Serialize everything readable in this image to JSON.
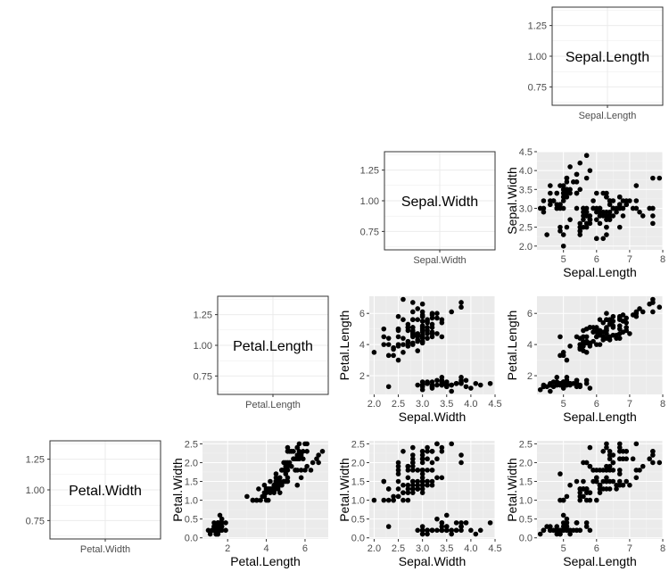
{
  "colors": {
    "panel_bg": "#ebebeb",
    "grid_major": "#ffffff",
    "grid_minor": "#f4f4f4",
    "point": "#000000",
    "diag_border": "#333333",
    "diag_grid": "#ebebeb",
    "tick_text": "#4d4d4d"
  },
  "chart_data": [
    {
      "id": "diag-sepal-length",
      "type": "label-panel",
      "variable": "Sepal.Length",
      "label": "Sepal.Length",
      "xlabel": "Sepal.Length",
      "ylim": [
        0.6,
        1.4
      ],
      "y_ticks": [
        0.75,
        1.0,
        1.25
      ],
      "y_tick_labels": [
        "0.75",
        "1.00",
        "1.25"
      ]
    },
    {
      "id": "diag-sepal-width",
      "type": "label-panel",
      "variable": "Sepal.Width",
      "label": "Sepal.Width",
      "xlabel": "Sepal.Width",
      "ylim": [
        0.6,
        1.4
      ],
      "y_ticks": [
        0.75,
        1.0,
        1.25
      ],
      "y_tick_labels": [
        "0.75",
        "1.00",
        "1.25"
      ]
    },
    {
      "id": "diag-petal-length",
      "type": "label-panel",
      "variable": "Petal.Length",
      "label": "Petal.Length",
      "xlabel": "Petal.Length",
      "ylim": [
        0.6,
        1.4
      ],
      "y_ticks": [
        0.75,
        1.0,
        1.25
      ],
      "y_tick_labels": [
        "0.75",
        "1.00",
        "1.25"
      ]
    },
    {
      "id": "diag-petal-width",
      "type": "label-panel",
      "variable": "Petal.Width",
      "label": "Petal.Width",
      "xlabel": "Petal.Width",
      "ylim": [
        0.6,
        1.4
      ],
      "y_ticks": [
        0.75,
        1.0,
        1.25
      ],
      "y_tick_labels": [
        "0.75",
        "1.00",
        "1.25"
      ]
    },
    {
      "id": "scatter-sepal-length-vs-sepal-width",
      "type": "scatter",
      "xvar": "Sepal.Length",
      "yvar": "Sepal.Width",
      "xlabel": "Sepal.Length",
      "ylabel": "Sepal.Width",
      "xlim": [
        4.2,
        8.0
      ],
      "ylim": [
        1.9,
        4.5
      ],
      "x_ticks": [
        5,
        6,
        7,
        8
      ],
      "y_ticks": [
        2.0,
        2.5,
        3.0,
        3.5,
        4.0,
        4.5
      ],
      "x_tick_labels": [
        "5",
        "6",
        "7",
        "8"
      ],
      "y_tick_labels": [
        "2.0",
        "2.5",
        "3.0",
        "3.5",
        "4.0",
        "4.5"
      ]
    },
    {
      "id": "scatter-sepal-width-vs-petal-length",
      "type": "scatter",
      "xvar": "Sepal.Width",
      "yvar": "Petal.Length",
      "xlabel": "Sepal.Width",
      "ylabel": "Petal.Length",
      "xlim": [
        1.9,
        4.5
      ],
      "ylim": [
        0.8,
        7.1
      ],
      "x_ticks": [
        2.0,
        2.5,
        3.0,
        3.5,
        4.0,
        4.5
      ],
      "y_ticks": [
        2,
        4,
        6
      ],
      "x_tick_labels": [
        "2.0",
        "2.5",
        "3.0",
        "3.5",
        "4.0",
        "4.5"
      ],
      "y_tick_labels": [
        "2",
        "4",
        "6"
      ]
    },
    {
      "id": "scatter-sepal-length-vs-petal-length",
      "type": "scatter",
      "xvar": "Sepal.Length",
      "yvar": "Petal.Length",
      "xlabel": "Sepal.Length",
      "ylabel": "Petal.Length",
      "xlim": [
        4.2,
        8.0
      ],
      "ylim": [
        0.8,
        7.1
      ],
      "x_ticks": [
        5,
        6,
        7,
        8
      ],
      "y_ticks": [
        2,
        4,
        6
      ],
      "x_tick_labels": [
        "5",
        "6",
        "7",
        "8"
      ],
      "y_tick_labels": [
        "2",
        "4",
        "6"
      ]
    },
    {
      "id": "scatter-petal-length-vs-petal-width",
      "type": "scatter",
      "xvar": "Petal.Length",
      "yvar": "Petal.Width",
      "xlabel": "Petal.Length",
      "ylabel": "Petal.Width",
      "xlim": [
        0.7,
        7.2
      ],
      "ylim": [
        -0.03,
        2.58
      ],
      "x_ticks": [
        2,
        4,
        6
      ],
      "y_ticks": [
        0.0,
        0.5,
        1.0,
        1.5,
        2.0,
        2.5
      ],
      "x_tick_labels": [
        "2",
        "4",
        "6"
      ],
      "y_tick_labels": [
        "0.0",
        "0.5",
        "1.0",
        "1.5",
        "2.0",
        "2.5"
      ]
    },
    {
      "id": "scatter-sepal-width-vs-petal-width",
      "type": "scatter",
      "xvar": "Sepal.Width",
      "yvar": "Petal.Width",
      "xlabel": "Sepal.Width",
      "ylabel": "Petal.Width",
      "xlim": [
        1.9,
        4.5
      ],
      "ylim": [
        -0.03,
        2.58
      ],
      "x_ticks": [
        2.0,
        2.5,
        3.0,
        3.5,
        4.0,
        4.5
      ],
      "y_ticks": [
        0.0,
        0.5,
        1.0,
        1.5,
        2.0,
        2.5
      ],
      "x_tick_labels": [
        "2.0",
        "2.5",
        "3.0",
        "3.5",
        "4.0",
        "4.5"
      ],
      "y_tick_labels": [
        "0.0",
        "0.5",
        "1.0",
        "1.5",
        "2.0",
        "2.5"
      ]
    },
    {
      "id": "scatter-sepal-length-vs-petal-width",
      "type": "scatter",
      "xvar": "Sepal.Length",
      "yvar": "Petal.Width",
      "xlabel": "Sepal.Length",
      "ylabel": "Petal.Width",
      "xlim": [
        4.2,
        8.0
      ],
      "ylim": [
        -0.03,
        2.58
      ],
      "x_ticks": [
        5,
        6,
        7,
        8
      ],
      "y_ticks": [
        0.0,
        0.5,
        1.0,
        1.5,
        2.0,
        2.5
      ],
      "x_tick_labels": [
        "5",
        "6",
        "7",
        "8"
      ],
      "y_tick_labels": [
        "0.0",
        "0.5",
        "1.0",
        "1.5",
        "2.0",
        "2.5"
      ]
    }
  ],
  "iris": {
    "columns": [
      "Sepal.Length",
      "Sepal.Width",
      "Petal.Length",
      "Petal.Width"
    ],
    "rows": [
      [
        5.1,
        3.5,
        1.4,
        0.2
      ],
      [
        4.9,
        3.0,
        1.4,
        0.2
      ],
      [
        4.7,
        3.2,
        1.3,
        0.2
      ],
      [
        4.6,
        3.1,
        1.5,
        0.2
      ],
      [
        5.0,
        3.6,
        1.4,
        0.2
      ],
      [
        5.4,
        3.9,
        1.7,
        0.4
      ],
      [
        4.6,
        3.4,
        1.4,
        0.3
      ],
      [
        5.0,
        3.4,
        1.5,
        0.2
      ],
      [
        4.4,
        2.9,
        1.4,
        0.2
      ],
      [
        4.9,
        3.1,
        1.5,
        0.1
      ],
      [
        5.4,
        3.7,
        1.5,
        0.2
      ],
      [
        4.8,
        3.4,
        1.6,
        0.2
      ],
      [
        4.8,
        3.0,
        1.4,
        0.1
      ],
      [
        4.3,
        3.0,
        1.1,
        0.1
      ],
      [
        5.8,
        4.0,
        1.2,
        0.2
      ],
      [
        5.7,
        4.4,
        1.5,
        0.4
      ],
      [
        5.4,
        3.9,
        1.3,
        0.4
      ],
      [
        5.1,
        3.5,
        1.4,
        0.3
      ],
      [
        5.7,
        3.8,
        1.7,
        0.3
      ],
      [
        5.1,
        3.8,
        1.5,
        0.3
      ],
      [
        5.4,
        3.4,
        1.7,
        0.2
      ],
      [
        5.1,
        3.7,
        1.5,
        0.4
      ],
      [
        4.6,
        3.6,
        1.0,
        0.2
      ],
      [
        5.1,
        3.3,
        1.7,
        0.5
      ],
      [
        4.8,
        3.4,
        1.9,
        0.2
      ],
      [
        5.0,
        3.0,
        1.6,
        0.2
      ],
      [
        5.0,
        3.4,
        1.6,
        0.4
      ],
      [
        5.2,
        3.5,
        1.5,
        0.2
      ],
      [
        5.2,
        3.4,
        1.4,
        0.2
      ],
      [
        4.7,
        3.2,
        1.6,
        0.2
      ],
      [
        4.8,
        3.1,
        1.6,
        0.2
      ],
      [
        5.4,
        3.4,
        1.5,
        0.4
      ],
      [
        5.2,
        4.1,
        1.5,
        0.1
      ],
      [
        5.5,
        4.2,
        1.4,
        0.2
      ],
      [
        4.9,
        3.1,
        1.5,
        0.2
      ],
      [
        5.0,
        3.2,
        1.2,
        0.2
      ],
      [
        5.5,
        3.5,
        1.3,
        0.2
      ],
      [
        4.9,
        3.6,
        1.4,
        0.1
      ],
      [
        4.4,
        3.0,
        1.3,
        0.2
      ],
      [
        5.1,
        3.4,
        1.5,
        0.2
      ],
      [
        5.0,
        3.5,
        1.3,
        0.3
      ],
      [
        4.5,
        2.3,
        1.3,
        0.3
      ],
      [
        4.4,
        3.2,
        1.3,
        0.2
      ],
      [
        5.0,
        3.5,
        1.6,
        0.6
      ],
      [
        5.1,
        3.8,
        1.9,
        0.4
      ],
      [
        4.8,
        3.0,
        1.4,
        0.3
      ],
      [
        5.1,
        3.8,
        1.6,
        0.2
      ],
      [
        4.6,
        3.2,
        1.4,
        0.2
      ],
      [
        5.3,
        3.7,
        1.5,
        0.2
      ],
      [
        5.0,
        3.3,
        1.4,
        0.2
      ],
      [
        7.0,
        3.2,
        4.7,
        1.4
      ],
      [
        6.4,
        3.2,
        4.5,
        1.5
      ],
      [
        6.9,
        3.1,
        4.9,
        1.5
      ],
      [
        5.5,
        2.3,
        4.0,
        1.3
      ],
      [
        6.5,
        2.8,
        4.6,
        1.5
      ],
      [
        5.7,
        2.8,
        4.5,
        1.3
      ],
      [
        6.3,
        3.3,
        4.7,
        1.6
      ],
      [
        4.9,
        2.4,
        3.3,
        1.0
      ],
      [
        6.6,
        2.9,
        4.6,
        1.3
      ],
      [
        5.2,
        2.7,
        3.9,
        1.4
      ],
      [
        5.0,
        2.0,
        3.5,
        1.0
      ],
      [
        5.9,
        3.0,
        4.2,
        1.5
      ],
      [
        6.0,
        2.2,
        4.0,
        1.0
      ],
      [
        6.1,
        2.9,
        4.7,
        1.4
      ],
      [
        5.6,
        2.9,
        3.6,
        1.3
      ],
      [
        6.7,
        3.1,
        4.4,
        1.4
      ],
      [
        5.6,
        3.0,
        4.5,
        1.5
      ],
      [
        5.8,
        2.7,
        4.1,
        1.0
      ],
      [
        6.2,
        2.2,
        4.5,
        1.5
      ],
      [
        5.6,
        2.5,
        3.9,
        1.1
      ],
      [
        5.9,
        3.2,
        4.8,
        1.8
      ],
      [
        6.1,
        2.8,
        4.0,
        1.3
      ],
      [
        6.3,
        2.5,
        4.9,
        1.5
      ],
      [
        6.1,
        2.8,
        4.7,
        1.2
      ],
      [
        6.4,
        2.9,
        4.3,
        1.3
      ],
      [
        6.6,
        3.0,
        4.4,
        1.4
      ],
      [
        6.8,
        2.8,
        4.8,
        1.4
      ],
      [
        6.7,
        3.0,
        5.0,
        1.7
      ],
      [
        6.0,
        2.9,
        4.5,
        1.5
      ],
      [
        5.7,
        2.6,
        3.5,
        1.0
      ],
      [
        5.5,
        2.4,
        3.8,
        1.1
      ],
      [
        5.5,
        2.4,
        3.7,
        1.0
      ],
      [
        5.8,
        2.7,
        3.9,
        1.2
      ],
      [
        6.0,
        2.7,
        5.1,
        1.6
      ],
      [
        5.4,
        3.0,
        4.5,
        1.5
      ],
      [
        6.0,
        3.4,
        4.5,
        1.6
      ],
      [
        6.7,
        3.1,
        4.7,
        1.5
      ],
      [
        6.3,
        2.3,
        4.4,
        1.3
      ],
      [
        5.6,
        3.0,
        4.1,
        1.3
      ],
      [
        5.5,
        2.5,
        4.0,
        1.3
      ],
      [
        5.5,
        2.6,
        4.4,
        1.2
      ],
      [
        6.1,
        3.0,
        4.6,
        1.4
      ],
      [
        5.8,
        2.6,
        4.0,
        1.2
      ],
      [
        5.0,
        2.3,
        3.3,
        1.0
      ],
      [
        5.6,
        2.7,
        4.2,
        1.3
      ],
      [
        5.7,
        3.0,
        4.2,
        1.2
      ],
      [
        5.7,
        2.9,
        4.2,
        1.3
      ],
      [
        6.2,
        2.9,
        4.3,
        1.3
      ],
      [
        5.1,
        2.5,
        3.0,
        1.1
      ],
      [
        5.7,
        2.8,
        4.1,
        1.3
      ],
      [
        6.3,
        3.3,
        6.0,
        2.5
      ],
      [
        5.8,
        2.7,
        5.1,
        1.9
      ],
      [
        7.1,
        3.0,
        5.9,
        2.1
      ],
      [
        6.3,
        2.9,
        5.6,
        1.8
      ],
      [
        6.5,
        3.0,
        5.8,
        2.2
      ],
      [
        7.6,
        3.0,
        6.6,
        2.1
      ],
      [
        4.9,
        2.5,
        4.5,
        1.7
      ],
      [
        7.3,
        2.9,
        6.3,
        1.8
      ],
      [
        6.7,
        2.5,
        5.8,
        1.8
      ],
      [
        7.2,
        3.6,
        6.1,
        2.5
      ],
      [
        6.5,
        3.2,
        5.1,
        2.0
      ],
      [
        6.4,
        2.7,
        5.3,
        1.9
      ],
      [
        6.8,
        3.0,
        5.5,
        2.1
      ],
      [
        5.7,
        2.5,
        5.0,
        2.0
      ],
      [
        5.8,
        2.8,
        5.1,
        2.4
      ],
      [
        6.4,
        3.2,
        5.3,
        2.3
      ],
      [
        6.5,
        3.0,
        5.5,
        1.8
      ],
      [
        7.7,
        3.8,
        6.7,
        2.2
      ],
      [
        7.7,
        2.6,
        6.9,
        2.3
      ],
      [
        6.0,
        2.2,
        5.0,
        1.5
      ],
      [
        6.9,
        3.2,
        5.7,
        2.3
      ],
      [
        5.6,
        2.8,
        4.9,
        2.0
      ],
      [
        7.7,
        2.8,
        6.7,
        2.0
      ],
      [
        6.3,
        2.7,
        4.9,
        1.8
      ],
      [
        6.7,
        3.3,
        5.7,
        2.1
      ],
      [
        7.2,
        3.2,
        6.0,
        1.8
      ],
      [
        6.2,
        2.8,
        4.8,
        1.8
      ],
      [
        6.1,
        3.0,
        4.9,
        1.8
      ],
      [
        6.4,
        2.8,
        5.6,
        2.1
      ],
      [
        7.2,
        3.0,
        5.8,
        1.6
      ],
      [
        7.4,
        2.8,
        6.1,
        1.9
      ],
      [
        7.9,
        3.8,
        6.4,
        2.0
      ],
      [
        6.4,
        2.8,
        5.6,
        2.2
      ],
      [
        6.3,
        2.8,
        5.1,
        1.5
      ],
      [
        6.1,
        2.6,
        5.6,
        1.4
      ],
      [
        7.7,
        3.0,
        6.1,
        2.3
      ],
      [
        6.3,
        3.4,
        5.6,
        2.4
      ],
      [
        6.4,
        3.1,
        5.5,
        1.8
      ],
      [
        6.0,
        3.0,
        4.8,
        1.8
      ],
      [
        6.9,
        3.1,
        5.4,
        2.1
      ],
      [
        6.7,
        3.1,
        5.6,
        2.4
      ],
      [
        6.9,
        3.1,
        5.1,
        2.3
      ],
      [
        5.8,
        2.7,
        5.1,
        1.9
      ],
      [
        6.8,
        3.2,
        5.9,
        2.3
      ],
      [
        6.7,
        3.3,
        5.7,
        2.5
      ],
      [
        6.7,
        3.0,
        5.2,
        2.3
      ],
      [
        6.3,
        2.5,
        5.0,
        1.9
      ],
      [
        6.5,
        3.0,
        5.2,
        2.0
      ],
      [
        6.2,
        3.4,
        5.4,
        2.3
      ],
      [
        5.9,
        3.0,
        5.1,
        1.8
      ]
    ]
  }
}
